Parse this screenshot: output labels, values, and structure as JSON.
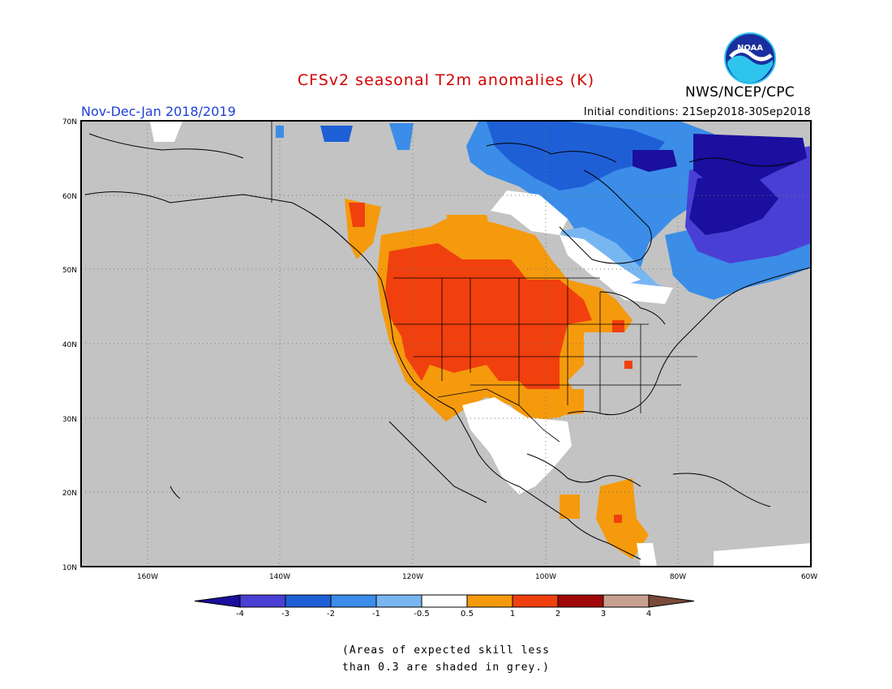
{
  "header": {
    "title": "CFSv2 seasonal T2m anomalies (K)",
    "period": "Nov-Dec-Jan 2018/2019",
    "initial_conditions": "Initial conditions: 21Sep2018-30Sep2018",
    "org": "NWS/NCEP/CPC",
    "logo_text": "NOAA"
  },
  "map": {
    "lat_labels": [
      "70N",
      "60N",
      "50N",
      "40N",
      "30N",
      "20N",
      "10N"
    ],
    "lon_labels": [
      "160W",
      "140W",
      "120W",
      "100W",
      "80W",
      "60W"
    ],
    "lat_range": [
      10,
      70
    ],
    "lon_range": [
      -170,
      -60
    ]
  },
  "colorbar": {
    "labels": [
      "-4",
      "-3",
      "-2",
      "-1",
      "-0.5",
      "0.5",
      "1",
      "2",
      "3",
      "4"
    ],
    "colors": [
      "#1a0f9e",
      "#4a3fd4",
      "#1f5fd6",
      "#3b8de8",
      "#78b6f2",
      "#ffffff",
      "#f59a0c",
      "#f0400e",
      "#a00808",
      "#c8a090",
      "#7a4a3a"
    ]
  },
  "note": {
    "line1": "(Areas of expected skill less",
    "line2": "than 0.3 are shaded in grey.)"
  },
  "colors": {
    "no_skill": "#c3c3c3",
    "title_red": "#d40000",
    "period_blue": "#1f3fd8"
  }
}
